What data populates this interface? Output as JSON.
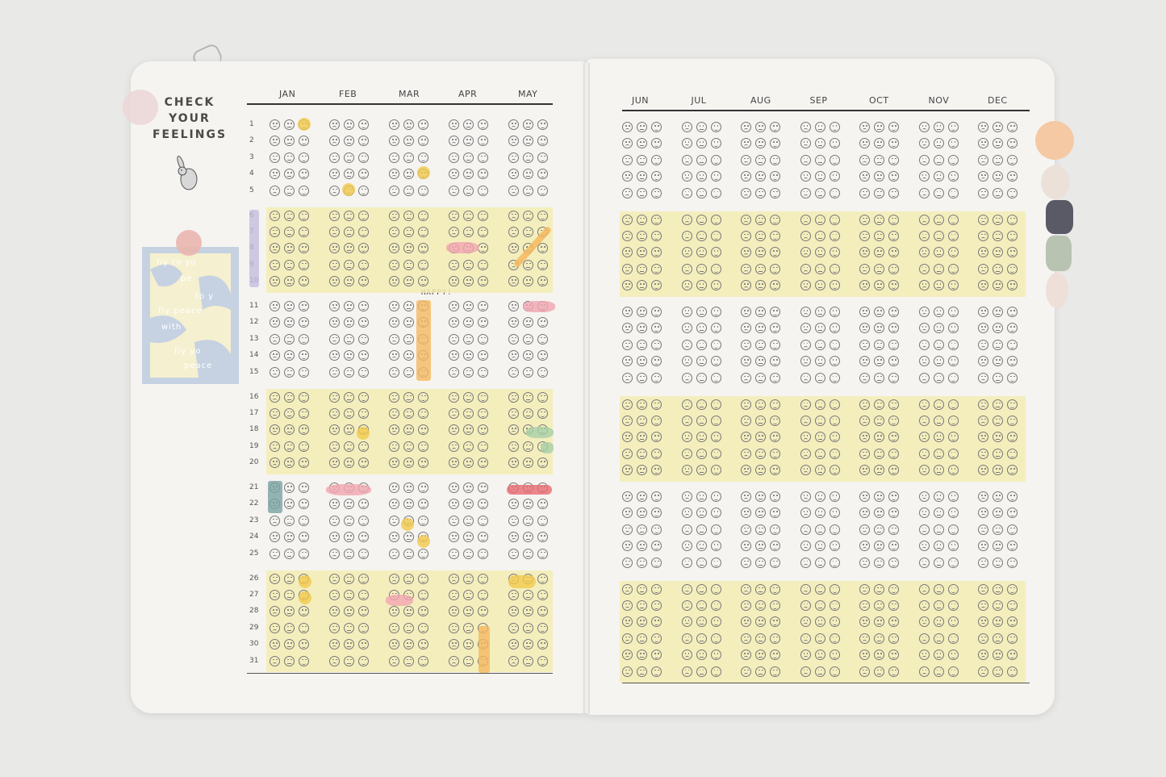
{
  "title_lines": [
    "CHECK",
    "YOUR",
    "FEELINGS"
  ],
  "left_months": [
    "JAN",
    "FEB",
    "MAR",
    "APR",
    "MAY"
  ],
  "right_months": [
    "JUN",
    "JUL",
    "AUG",
    "SEP",
    "OCT",
    "NOV",
    "DEC"
  ],
  "days": [
    "1",
    "2",
    "3",
    "4",
    "5",
    "6",
    "7",
    "8",
    "9",
    "10",
    "11",
    "12",
    "13",
    "14",
    "15",
    "16",
    "17",
    "18",
    "19",
    "20",
    "21",
    "22",
    "23",
    "24",
    "25",
    "26",
    "27",
    "28",
    "29",
    "30",
    "31"
  ],
  "mood_icons": [
    "sad-face-icon",
    "neutral-face-icon",
    "happy-face-icon"
  ],
  "handwritten_note": "HAPPY!",
  "stamp_text": [
    "fly to yo",
    "pe",
    "to y",
    "fly peace",
    "with",
    "fly yo",
    "peace"
  ],
  "colors": {
    "paper": "#f5f4f1",
    "highlight_band": "#f3ecb4",
    "yellow_sticker": "#f2c94c",
    "orange_tape": "#f5b860",
    "pink_tape": "#f2a5b0",
    "red_tape": "#e86a72",
    "green_tape": "#a8cfa8",
    "teal_tape": "#7aa3a3",
    "purple_tape": "#c7bde0"
  },
  "tab_colors": [
    "#f5c9a3",
    "#ebe1d9",
    "#5a5a66",
    "#b9c3b2",
    "#eee0d8"
  ]
}
